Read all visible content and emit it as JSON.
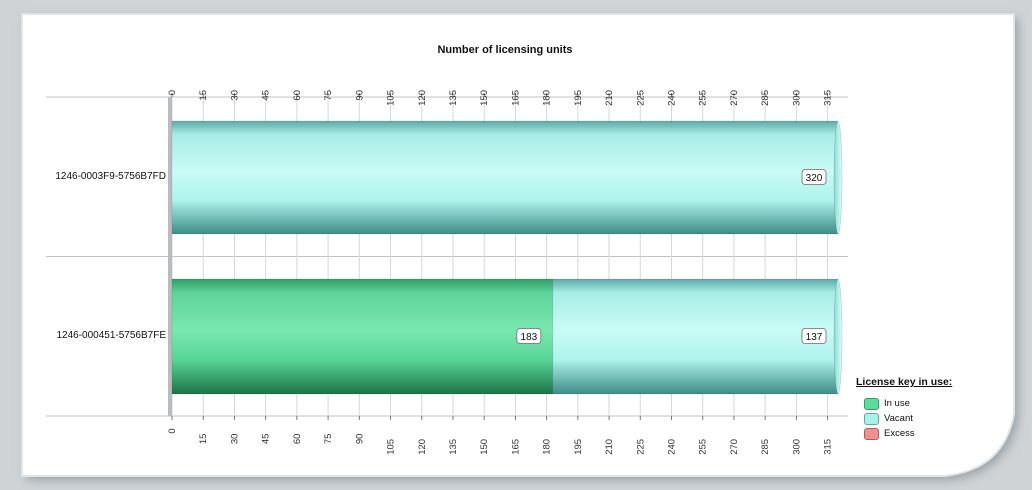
{
  "chart_data": {
    "type": "bar",
    "orientation": "horizontal",
    "stacked": true,
    "title": "Number of licensing units",
    "categories": [
      "1246-0003F9-5756B7FD",
      "1246-000451-5756B7FE"
    ],
    "series": [
      {
        "name": "In use",
        "values": [
          0,
          183
        ],
        "color": "#5fdc9c"
      },
      {
        "name": "Vacant",
        "values": [
          320,
          137
        ],
        "color": "#a8f0ea"
      },
      {
        "name": "Excess",
        "values": [
          0,
          0
        ],
        "color": "#f09090"
      }
    ],
    "xlim": [
      0,
      320
    ],
    "ticks": [
      0,
      15,
      30,
      45,
      60,
      75,
      90,
      105,
      120,
      135,
      150,
      165,
      180,
      195,
      210,
      225,
      240,
      255,
      270,
      285,
      300,
      315
    ],
    "data_labels": [
      {
        "row": 0,
        "series": 1,
        "text": "320"
      },
      {
        "row": 1,
        "series": 0,
        "text": "183"
      },
      {
        "row": 1,
        "series": 1,
        "text": "137"
      }
    ],
    "grid": true,
    "legend": {
      "title": "License key in use:",
      "position": "bottom-right"
    }
  }
}
